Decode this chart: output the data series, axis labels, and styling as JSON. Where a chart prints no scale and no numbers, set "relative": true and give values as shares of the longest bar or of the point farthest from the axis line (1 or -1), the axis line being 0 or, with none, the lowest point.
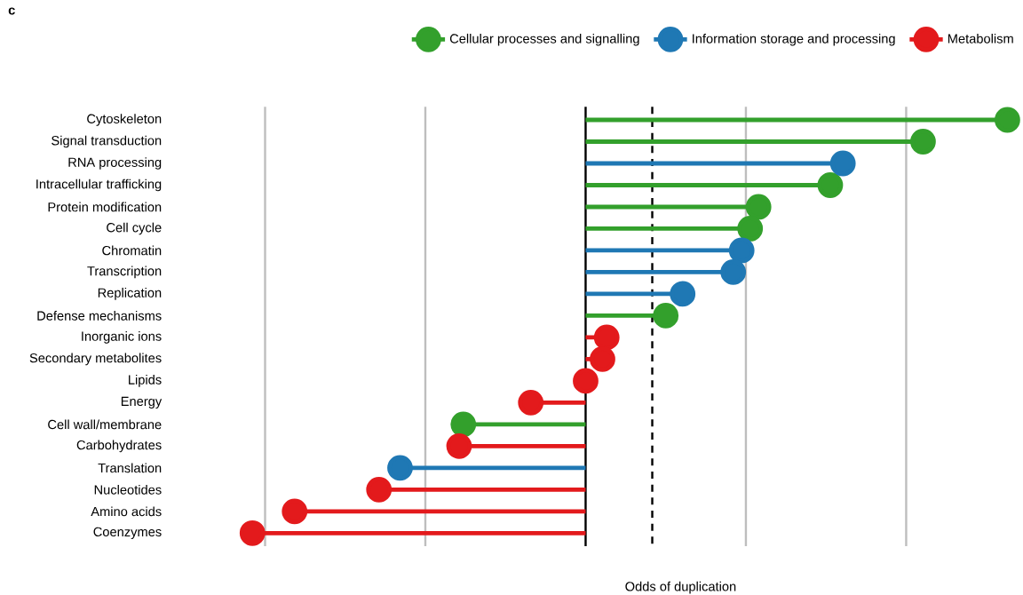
{
  "chart_data": {
    "type": "lollipop",
    "orientation": "horizontal",
    "relative": true,
    "xlabel": "Odds of duplication",
    "legend": "top right",
    "marker": "circle",
    "annotations": [
      "c"
    ],
    "categories": [
      "Cytoskeleton",
      "Signal transduction",
      "RNA processing",
      "Intracellular trafficking",
      "Protein modification",
      "Cell cycle",
      "Chromatin",
      "Transcription",
      "Replication",
      "Defense mechanisms",
      "Inorganic ions",
      "Secondary metabolites",
      "Lipids",
      "Energy",
      "Cell wall/membrane",
      "Carbohydrates",
      "Translation",
      "Nucleotides",
      "Amino acids",
      "Coenzymes"
    ],
    "series": [
      {
        "name": "Cellular processes and signalling",
        "color": "#33a02c",
        "values": [
          1.0,
          0.8,
          null,
          0.58,
          0.41,
          0.39,
          null,
          null,
          null,
          0.19,
          null,
          null,
          null,
          null,
          -0.29,
          null,
          null,
          null,
          null,
          null
        ]
      },
      {
        "name": "Information storage and processing",
        "color": "#1f78b4",
        "values": [
          null,
          null,
          0.61,
          null,
          null,
          null,
          0.37,
          0.35,
          0.23,
          null,
          null,
          null,
          null,
          null,
          null,
          null,
          -0.44,
          null,
          null,
          null
        ]
      },
      {
        "name": "Metabolism",
        "color": "#e31a1c",
        "values": [
          null,
          null,
          null,
          null,
          null,
          null,
          null,
          null,
          null,
          null,
          0.05,
          0.04,
          0.0,
          -0.13,
          null,
          -0.3,
          null,
          -0.49,
          -0.69,
          -0.79
        ]
      }
    ],
    "ref_lines": [
      {
        "axis": "x",
        "value": -0.76,
        "color": "#bebebe",
        "line_style": "solid"
      },
      {
        "axis": "x",
        "value": -0.38,
        "color": "#bebebe",
        "line_style": "solid"
      },
      {
        "axis": "x",
        "value": 0.38,
        "color": "#bebebe",
        "line_style": "solid"
      },
      {
        "axis": "x",
        "value": 0.76,
        "color": "#bebebe",
        "line_style": "solid"
      },
      {
        "axis": "x",
        "value": 0.158,
        "color": "#000000",
        "line_style": "dashed"
      }
    ]
  }
}
